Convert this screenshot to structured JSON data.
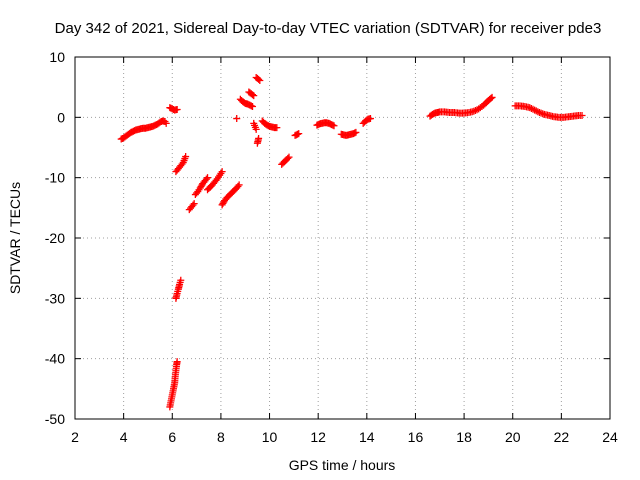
{
  "chart_data": {
    "type": "scatter",
    "title": "Day 342 of 2021, Sidereal Day-to-day VTEC variation (SDTVAR) for receiver pde3",
    "xlabel": "GPS time / hours",
    "ylabel": "SDTVAR / TECUs",
    "xlim": [
      2,
      24
    ],
    "ylim": [
      -50,
      10
    ],
    "xticks": [
      2,
      4,
      6,
      8,
      10,
      12,
      14,
      16,
      18,
      20,
      22,
      24
    ],
    "yticks": [
      -50,
      -40,
      -30,
      -20,
      -10,
      0,
      10
    ],
    "grid": true,
    "marker": "+",
    "color": "#ff0000",
    "series": [
      {
        "name": "SDTVAR",
        "segments": [
          [
            [
              3.9,
              -3.6
            ],
            [
              4.0,
              -3.4
            ],
            [
              4.1,
              -3.1
            ],
            [
              4.2,
              -2.8
            ],
            [
              4.3,
              -2.5
            ],
            [
              4.4,
              -2.3
            ],
            [
              4.5,
              -2.1
            ],
            [
              4.6,
              -2.0
            ],
            [
              4.7,
              -1.9
            ],
            [
              4.8,
              -1.8
            ],
            [
              4.9,
              -1.8
            ],
            [
              5.0,
              -1.7
            ],
            [
              5.1,
              -1.6
            ],
            [
              5.2,
              -1.5
            ],
            [
              5.3,
              -1.3
            ],
            [
              5.4,
              -1.1
            ],
            [
              5.5,
              -0.8
            ],
            [
              5.6,
              -0.6
            ],
            [
              5.7,
              -0.7
            ],
            [
              5.75,
              -1.0
            ]
          ],
          [
            [
              5.9,
              1.6
            ],
            [
              6.0,
              1.4
            ],
            [
              6.1,
              1.2
            ],
            [
              6.2,
              1.3
            ]
          ],
          [
            [
              5.9,
              -48.0
            ],
            [
              5.95,
              -47.0
            ],
            [
              6.0,
              -46.0
            ],
            [
              6.05,
              -45.0
            ],
            [
              6.1,
              -44.0
            ],
            [
              6.12,
              -43.0
            ],
            [
              6.15,
              -42.0
            ],
            [
              6.18,
              -41.0
            ],
            [
              6.2,
              -40.5
            ]
          ],
          [
            [
              6.15,
              -30.0
            ],
            [
              6.2,
              -29.2
            ],
            [
              6.25,
              -28.5
            ],
            [
              6.3,
              -27.7
            ],
            [
              6.35,
              -27.0
            ]
          ],
          [
            [
              6.15,
              -9.0
            ],
            [
              6.25,
              -8.5
            ],
            [
              6.35,
              -8.0
            ],
            [
              6.45,
              -7.5
            ],
            [
              6.55,
              -6.5
            ]
          ],
          [
            [
              6.7,
              -15.3
            ],
            [
              6.8,
              -14.8
            ],
            [
              6.9,
              -14.3
            ]
          ],
          [
            [
              6.95,
              -12.8
            ],
            [
              7.05,
              -12.3
            ],
            [
              7.15,
              -11.7
            ],
            [
              7.25,
              -11.0
            ],
            [
              7.35,
              -10.5
            ],
            [
              7.45,
              -10.0
            ]
          ],
          [
            [
              7.45,
              -12.0
            ],
            [
              7.55,
              -11.6
            ],
            [
              7.65,
              -11.2
            ],
            [
              7.75,
              -10.7
            ],
            [
              7.85,
              -10.2
            ],
            [
              7.95,
              -9.6
            ],
            [
              8.05,
              -9.0
            ]
          ],
          [
            [
              8.05,
              -14.5
            ],
            [
              8.15,
              -13.8
            ],
            [
              8.25,
              -13.3
            ],
            [
              8.35,
              -12.9
            ],
            [
              8.45,
              -12.5
            ],
            [
              8.55,
              -12.1
            ],
            [
              8.65,
              -11.7
            ],
            [
              8.75,
              -11.2
            ]
          ],
          [
            [
              8.65,
              -0.2
            ]
          ],
          [
            [
              8.8,
              3.0
            ],
            [
              8.9,
              2.6
            ],
            [
              9.0,
              2.3
            ],
            [
              9.1,
              2.2
            ],
            [
              9.2,
              2.0
            ],
            [
              9.3,
              1.8
            ]
          ],
          [
            [
              9.15,
              4.2
            ],
            [
              9.25,
              3.9
            ],
            [
              9.35,
              3.6
            ]
          ],
          [
            [
              9.45,
              6.6
            ],
            [
              9.55,
              6.3
            ],
            [
              9.6,
              6.1
            ]
          ],
          [
            [
              9.35,
              -1.0
            ],
            [
              9.45,
              -2.0
            ]
          ],
          [
            [
              9.5,
              -4.3
            ],
            [
              9.55,
              -3.5
            ]
          ],
          [
            [
              9.7,
              -0.6
            ],
            [
              9.8,
              -1.0
            ],
            [
              9.9,
              -1.3
            ],
            [
              10.0,
              -1.5
            ],
            [
              10.1,
              -1.6
            ],
            [
              10.2,
              -1.7
            ],
            [
              10.3,
              -1.7
            ]
          ],
          [
            [
              10.5,
              -7.8
            ],
            [
              10.6,
              -7.4
            ],
            [
              10.7,
              -7.0
            ],
            [
              10.8,
              -6.6
            ]
          ],
          [
            [
              11.05,
              -3.0
            ],
            [
              11.15,
              -2.8
            ],
            [
              11.2,
              -2.7
            ]
          ],
          [
            [
              11.95,
              -1.3
            ],
            [
              12.05,
              -1.1
            ],
            [
              12.15,
              -1.0
            ],
            [
              12.25,
              -0.9
            ],
            [
              12.35,
              -0.9
            ],
            [
              12.45,
              -1.0
            ],
            [
              12.55,
              -1.2
            ],
            [
              12.65,
              -1.4
            ]
          ],
          [
            [
              12.95,
              -2.8
            ],
            [
              13.05,
              -2.9
            ],
            [
              13.15,
              -3.0
            ],
            [
              13.25,
              -2.9
            ],
            [
              13.35,
              -2.8
            ],
            [
              13.45,
              -2.7
            ],
            [
              13.55,
              -2.5
            ]
          ],
          [
            [
              13.85,
              -1.0
            ],
            [
              13.95,
              -0.6
            ],
            [
              14.05,
              -0.3
            ],
            [
              14.15,
              -0.2
            ]
          ],
          [
            [
              16.6,
              0.2
            ],
            [
              16.7,
              0.5
            ],
            [
              16.8,
              0.7
            ],
            [
              16.9,
              0.8
            ],
            [
              17.0,
              0.9
            ],
            [
              17.2,
              0.9
            ],
            [
              17.4,
              0.8
            ],
            [
              17.6,
              0.8
            ],
            [
              17.8,
              0.7
            ],
            [
              18.0,
              0.7
            ],
            [
              18.2,
              0.8
            ],
            [
              18.4,
              1.0
            ],
            [
              18.6,
              1.4
            ],
            [
              18.8,
              2.0
            ],
            [
              19.0,
              2.8
            ],
            [
              19.15,
              3.3
            ]
          ],
          [
            [
              20.1,
              1.9
            ],
            [
              20.3,
              1.9
            ],
            [
              20.5,
              1.8
            ],
            [
              20.7,
              1.6
            ],
            [
              20.9,
              1.2
            ],
            [
              21.1,
              0.8
            ],
            [
              21.3,
              0.5
            ],
            [
              21.5,
              0.3
            ],
            [
              21.7,
              0.1
            ],
            [
              21.9,
              0.0
            ],
            [
              22.1,
              0.0
            ],
            [
              22.3,
              0.1
            ],
            [
              22.5,
              0.2
            ],
            [
              22.7,
              0.3
            ],
            [
              22.85,
              0.3
            ]
          ]
        ]
      }
    ]
  }
}
